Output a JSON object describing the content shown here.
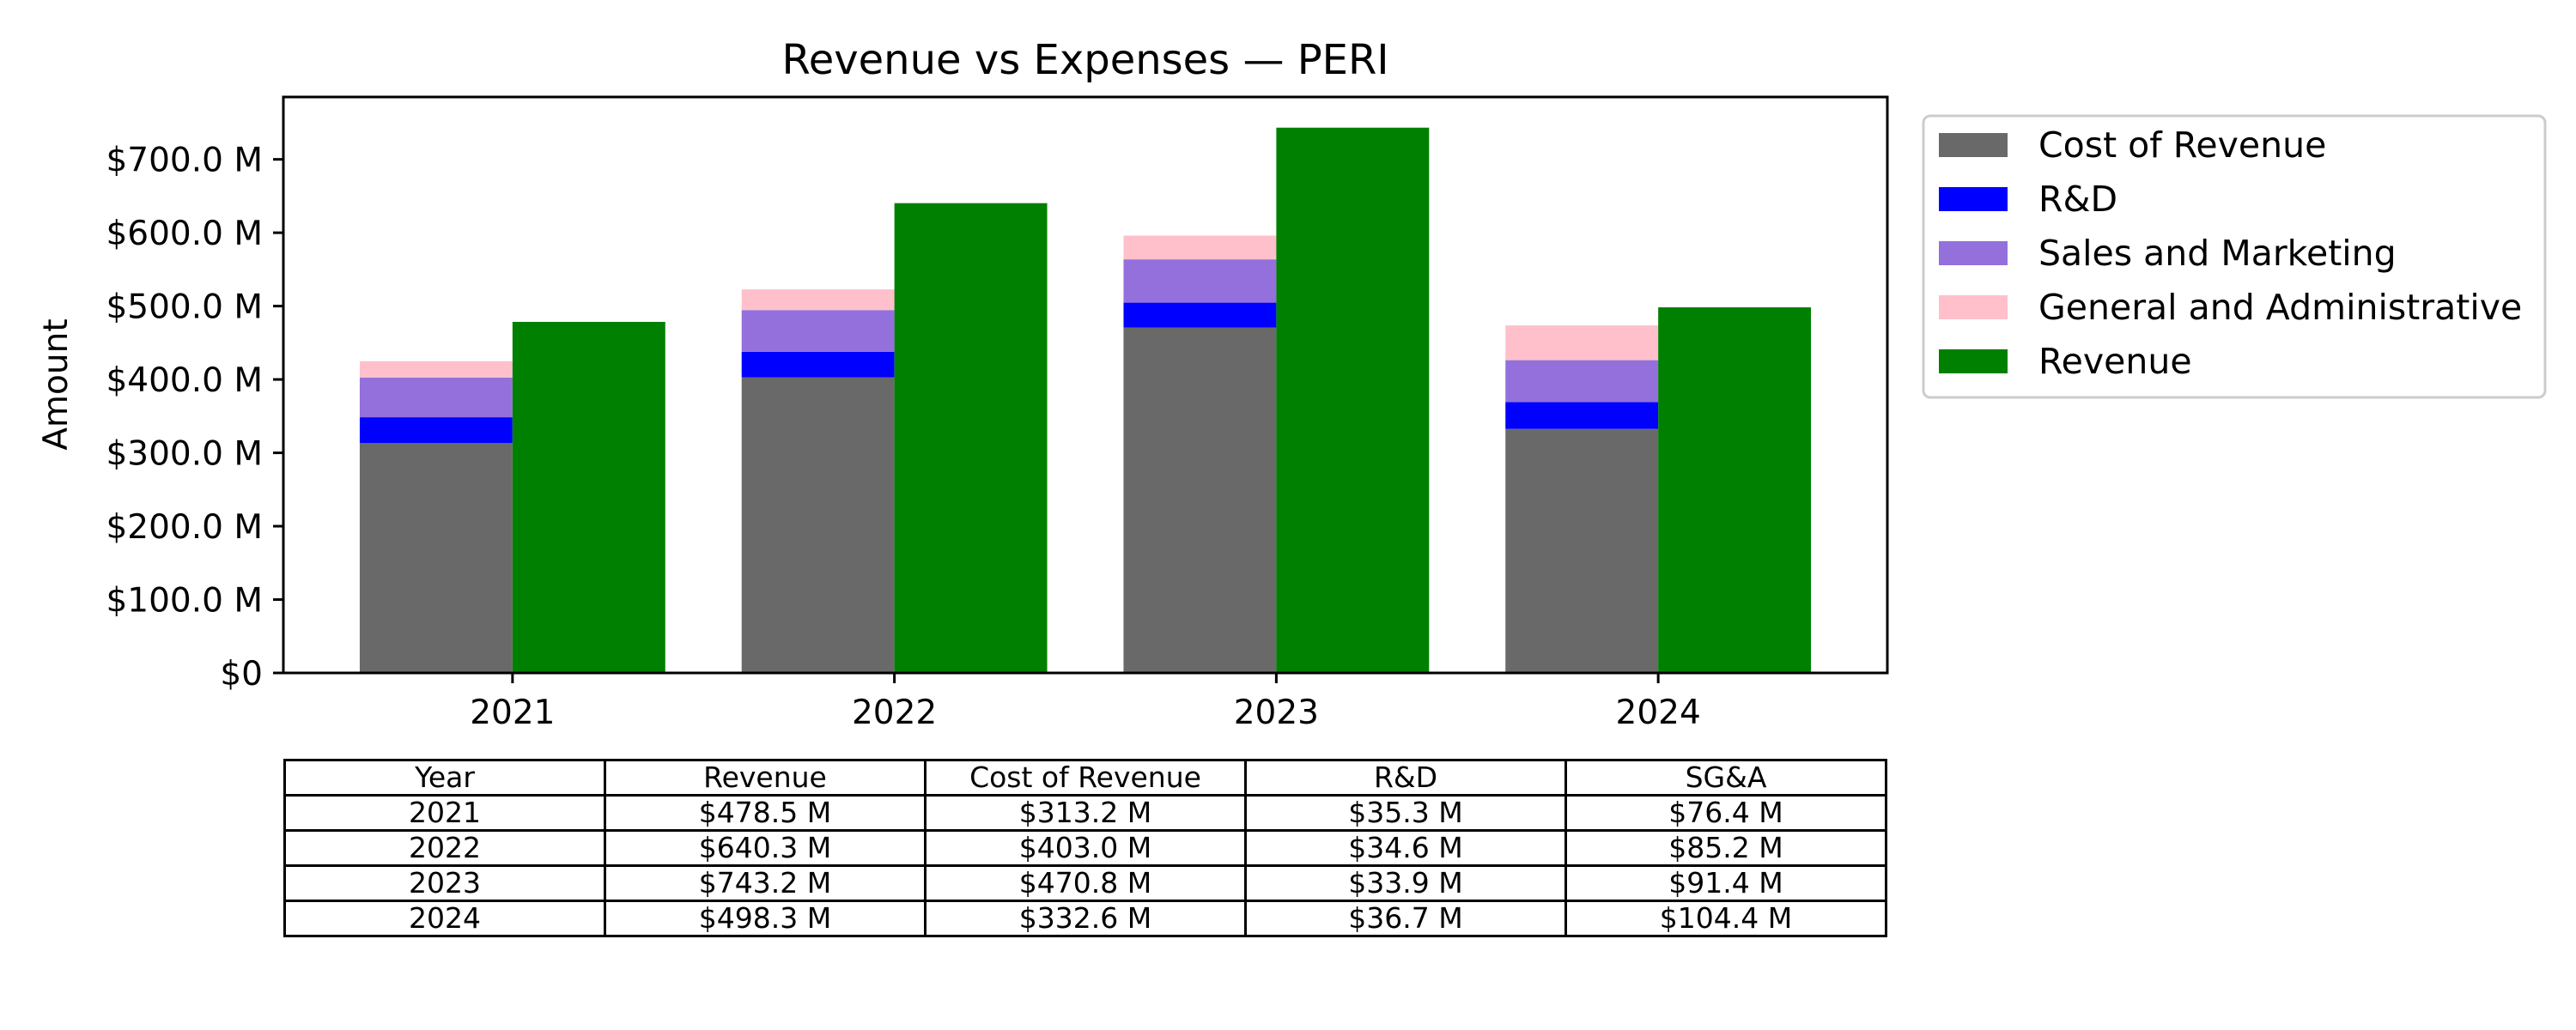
{
  "chart_data": {
    "type": "bar",
    "title": "Revenue vs Expenses — PERI",
    "xlabel": "",
    "ylabel": "Amount",
    "categories": [
      "2021",
      "2022",
      "2023",
      "2024"
    ],
    "ylim": [
      0,
      785000000
    ],
    "yticks": [
      0,
      100000000,
      200000000,
      300000000,
      400000000,
      500000000,
      600000000,
      700000000
    ],
    "ytick_labels": [
      "$0",
      "$100.0 M",
      "$200.0 M",
      "$300.0 M",
      "$400.0 M",
      "$500.0 M",
      "$600.0 M",
      "$700.0 M"
    ],
    "stacked_series": [
      {
        "name": "Cost of Revenue",
        "color": "#696969",
        "values": [
          313200000,
          403000000,
          470800000,
          332600000
        ]
      },
      {
        "name": "R&D",
        "color": "#0000ff",
        "values": [
          35300000,
          34600000,
          33900000,
          36700000
        ]
      },
      {
        "name": "Sales and Marketing",
        "color": "#9370db",
        "values": [
          54000000,
          57000000,
          59000000,
          57000000
        ]
      },
      {
        "name": "General and Administrative",
        "color": "#ffc0cb",
        "values": [
          22400000,
          28200000,
          32400000,
          47400000
        ]
      }
    ],
    "revenue_series": {
      "name": "Revenue",
      "color": "#008000",
      "values": [
        478500000,
        640300000,
        743200000,
        498300000
      ]
    },
    "legend_position": "outside-right-top",
    "grid": false
  },
  "table": {
    "headers": [
      "Year",
      "Revenue",
      "Cost of Revenue",
      "R&D",
      "SG&A"
    ],
    "rows": [
      [
        "2021",
        "$478.5 M",
        "$313.2 M",
        "$35.3 M",
        "$76.4 M"
      ],
      [
        "2022",
        "$640.3 M",
        "$403.0 M",
        "$34.6 M",
        "$85.2 M"
      ],
      [
        "2023",
        "$743.2 M",
        "$470.8 M",
        "$33.9 M",
        "$91.4 M"
      ],
      [
        "2024",
        "$498.3 M",
        "$332.6 M",
        "$36.7 M",
        "$104.4 M"
      ]
    ]
  }
}
